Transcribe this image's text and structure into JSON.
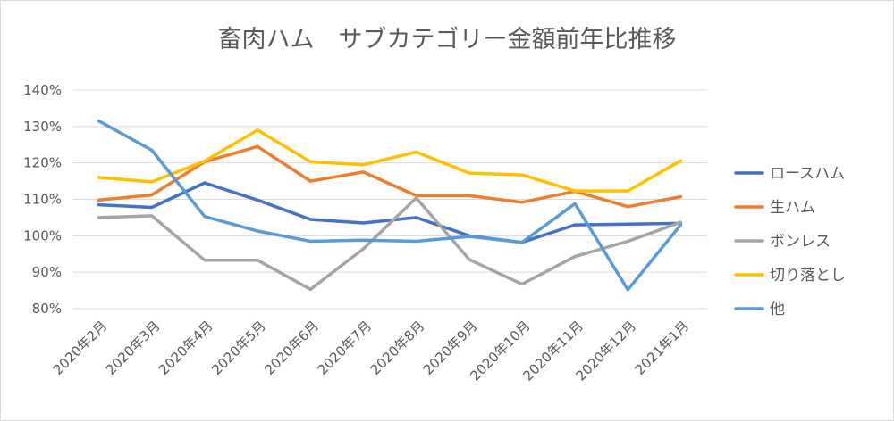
{
  "chart_data": {
    "type": "line",
    "title": "畜肉ハム　サブカテゴリー金額前年比推移",
    "xlabel": "",
    "ylabel": "",
    "categories": [
      "2020年2月",
      "2020年3月",
      "2020年4月",
      "2020年5月",
      "2020年6月",
      "2020年7月",
      "2020年8月",
      "2020年9月",
      "2020年10月",
      "2020年11月",
      "2020年12月",
      "2021年1月"
    ],
    "ylim": [
      80,
      140
    ],
    "yticks": [
      80,
      90,
      100,
      110,
      120,
      130,
      140
    ],
    "ytick_labels": [
      "80%",
      "90%",
      "100%",
      "110%",
      "120%",
      "130%",
      "140%"
    ],
    "grid": true,
    "legend": "right",
    "series": [
      {
        "name": "ロースハム",
        "color": "#4472c4",
        "values": [
          108.5,
          107.8,
          114.5,
          109.8,
          104.5,
          103.5,
          105.0,
          100.0,
          98.2,
          103.0,
          103.2,
          103.4
        ]
      },
      {
        "name": "生ハム",
        "color": "#ed7d31",
        "values": [
          109.8,
          111.2,
          120.3,
          124.5,
          115.0,
          117.5,
          111.0,
          111.0,
          109.2,
          112.2,
          108.0,
          110.7
        ]
      },
      {
        "name": "ボンレス",
        "color": "#a5a5a5",
        "values": [
          105.0,
          105.5,
          93.3,
          93.3,
          85.3,
          96.4,
          110.4,
          93.5,
          86.7,
          94.3,
          98.5,
          103.7
        ]
      },
      {
        "name": "切り落とし",
        "color": "#ffc000",
        "values": [
          116.0,
          114.8,
          120.5,
          129.0,
          120.3,
          119.5,
          123.0,
          117.2,
          116.7,
          112.3,
          112.3,
          120.6
        ]
      },
      {
        "name": "他",
        "color": "#5b9bd5",
        "values": [
          131.5,
          123.5,
          105.3,
          101.3,
          98.5,
          98.8,
          98.5,
          99.8,
          98.2,
          108.8,
          85.2,
          103.0
        ]
      }
    ]
  }
}
